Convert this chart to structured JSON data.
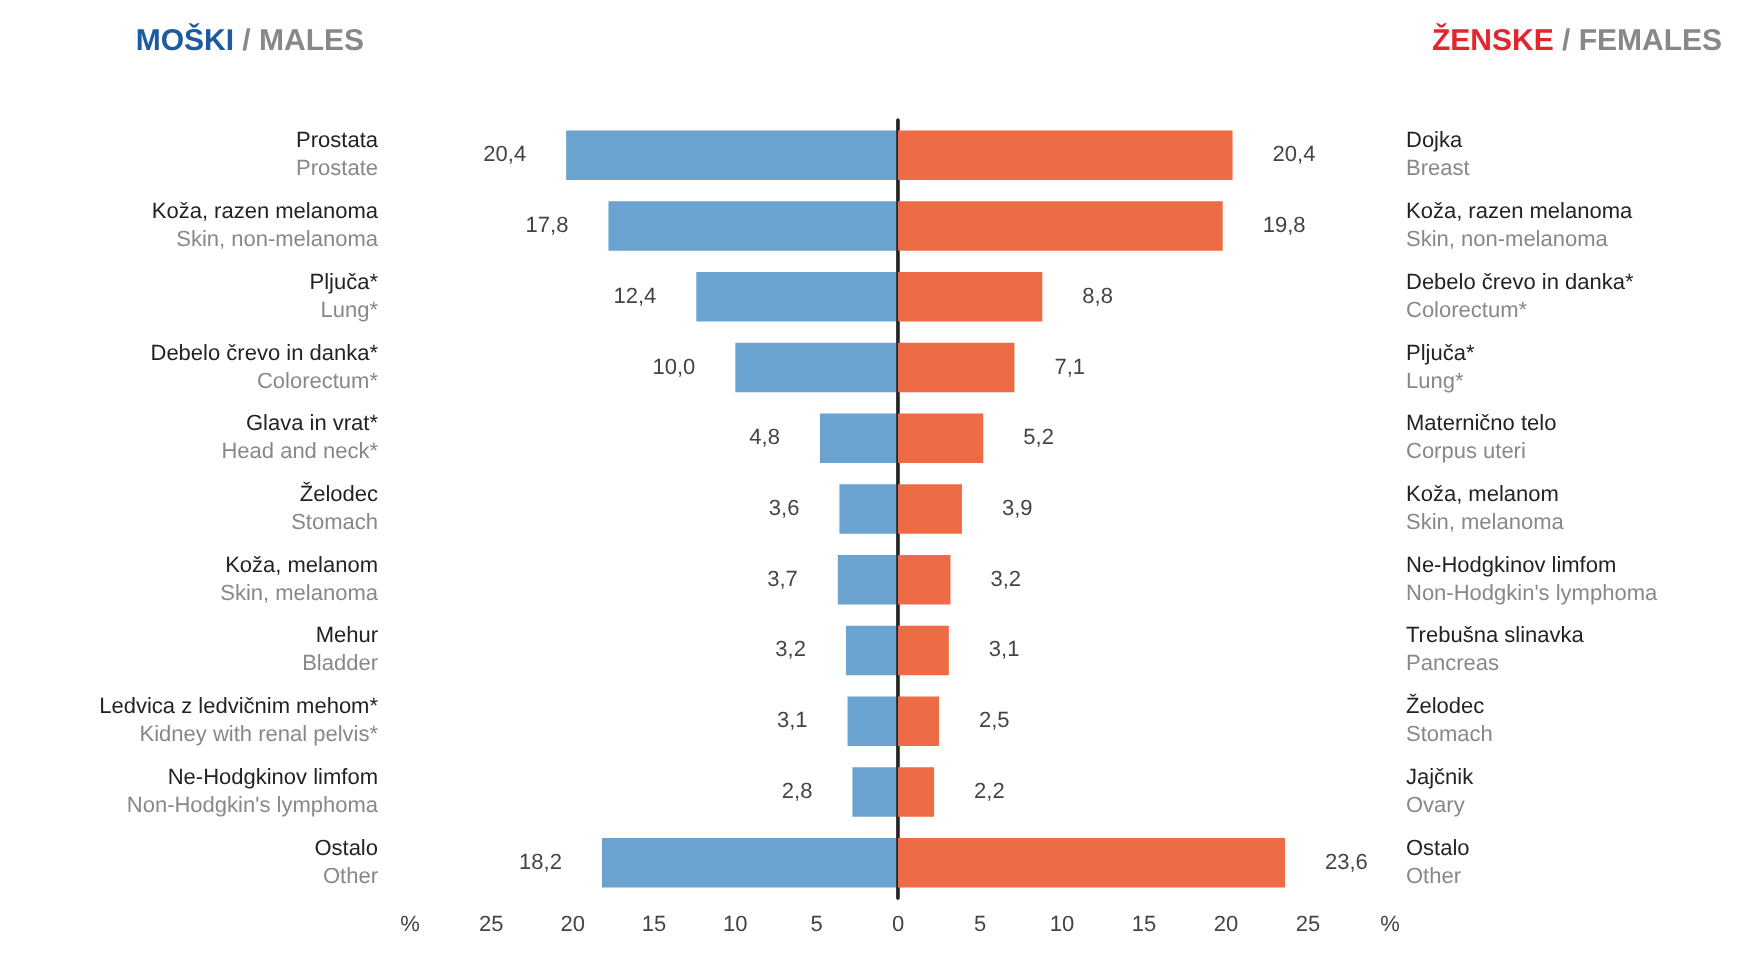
{
  "chart_data": [
    {
      "type": "bar",
      "orientation": "horizontal",
      "title": "MOŠKI / MALES",
      "categories": [
        "Prostata\nProstate",
        "Koža, razen melanoma\nSkin, non-melanoma",
        "Pljuča*\nLung*",
        "Debelo črevo in danka*\nColorectum*",
        "Glava in vrat*\nHead and neck*",
        "Želodec\nStomach",
        "Koža, melanom\nSkin, melanoma",
        "Mehur\nBladder",
        "Ledvica z ledvičnim mehom*\nKidney with renal pelvis*",
        "Ne-Hodgkinov limfom\nNon-Hodgkin's lymphoma",
        "Ostalo\nOther"
      ],
      "values": [
        20.4,
        17.8,
        12.4,
        10.0,
        4.8,
        3.6,
        3.7,
        3.2,
        3.1,
        2.8,
        18.2
      ],
      "value_labels": [
        "20,4",
        "17,8",
        "12,4",
        "10,0",
        "4,8",
        "3,6",
        "3,7",
        "3,2",
        "3,1",
        "2,8",
        "18,2"
      ],
      "color": "#6aa2d0",
      "xlim": [
        30,
        0
      ],
      "xticks": [
        5,
        10,
        15,
        20,
        25,
        {
          "value": 30,
          "label": "%"
        }
      ]
    },
    {
      "type": "bar",
      "orientation": "horizontal",
      "title": "ŽENSKE / FEMALES",
      "categories": [
        "Dojka\nBreast",
        "Koža, razen melanoma\nSkin, non-melanoma",
        "Debelo črevo in danka*\nColorectum*",
        "Pljuča*\nLung*",
        "Maternično telo\nCorpus uteri",
        "Koža, melanom\nSkin, melanoma",
        "Ne-Hodgkinov limfom\nNon-Hodgkin's lymphoma",
        "Trebušna slinavka\nPancreas",
        "Želodec\nStomach",
        "Jajčnik\nOvary",
        "Ostalo\nOther"
      ],
      "values": [
        20.4,
        19.8,
        8.8,
        7.1,
        5.2,
        3.9,
        3.2,
        3.1,
        2.5,
        2.2,
        23.6
      ],
      "value_labels": [
        "20,4",
        "19,8",
        "8,8",
        "7,1",
        "5,2",
        "3,9",
        "3,2",
        "3,1",
        "2,5",
        "2,2",
        "23,6"
      ],
      "color": "#ee6c45",
      "xlim": [
        0,
        30
      ],
      "xticks": [
        0,
        5,
        10,
        15,
        20,
        25,
        {
          "value": 30,
          "label": "%"
        }
      ]
    }
  ]
}
